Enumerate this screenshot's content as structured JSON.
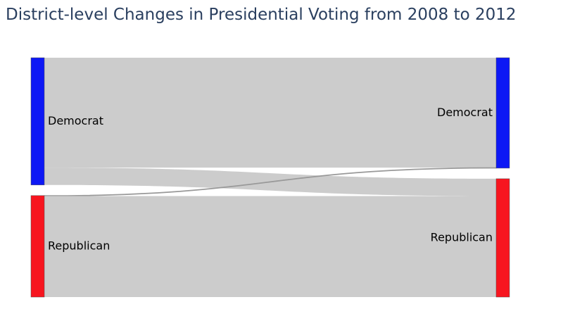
{
  "title": "District-level Changes in Presidential Voting from 2008 to 2012",
  "colors": {
    "democrat": "#0d18f5",
    "republican": "#f7151f",
    "link": "#cccccc",
    "node_border": "#555555",
    "title": "#2a3f5f"
  },
  "chart_data": {
    "type": "sankey",
    "nodes": [
      {
        "id": "dem_2008",
        "label": "Democrat",
        "column": 0,
        "color": "#0d18f5"
      },
      {
        "id": "rep_2008",
        "label": "Republican",
        "column": 0,
        "color": "#f7151f"
      },
      {
        "id": "dem_2012",
        "label": "Democrat",
        "column": 1,
        "color": "#0d18f5"
      },
      {
        "id": "rep_2012",
        "label": "Republican",
        "column": 1,
        "color": "#f7151f"
      }
    ],
    "links": [
      {
        "source": "dem_2008",
        "target": "dem_2012",
        "value": 209
      },
      {
        "source": "dem_2008",
        "target": "rep_2012",
        "value": 33
      },
      {
        "source": "rep_2008",
        "target": "dem_2012",
        "value": 1
      },
      {
        "source": "rep_2008",
        "target": "rep_2012",
        "value": 192
      }
    ]
  }
}
